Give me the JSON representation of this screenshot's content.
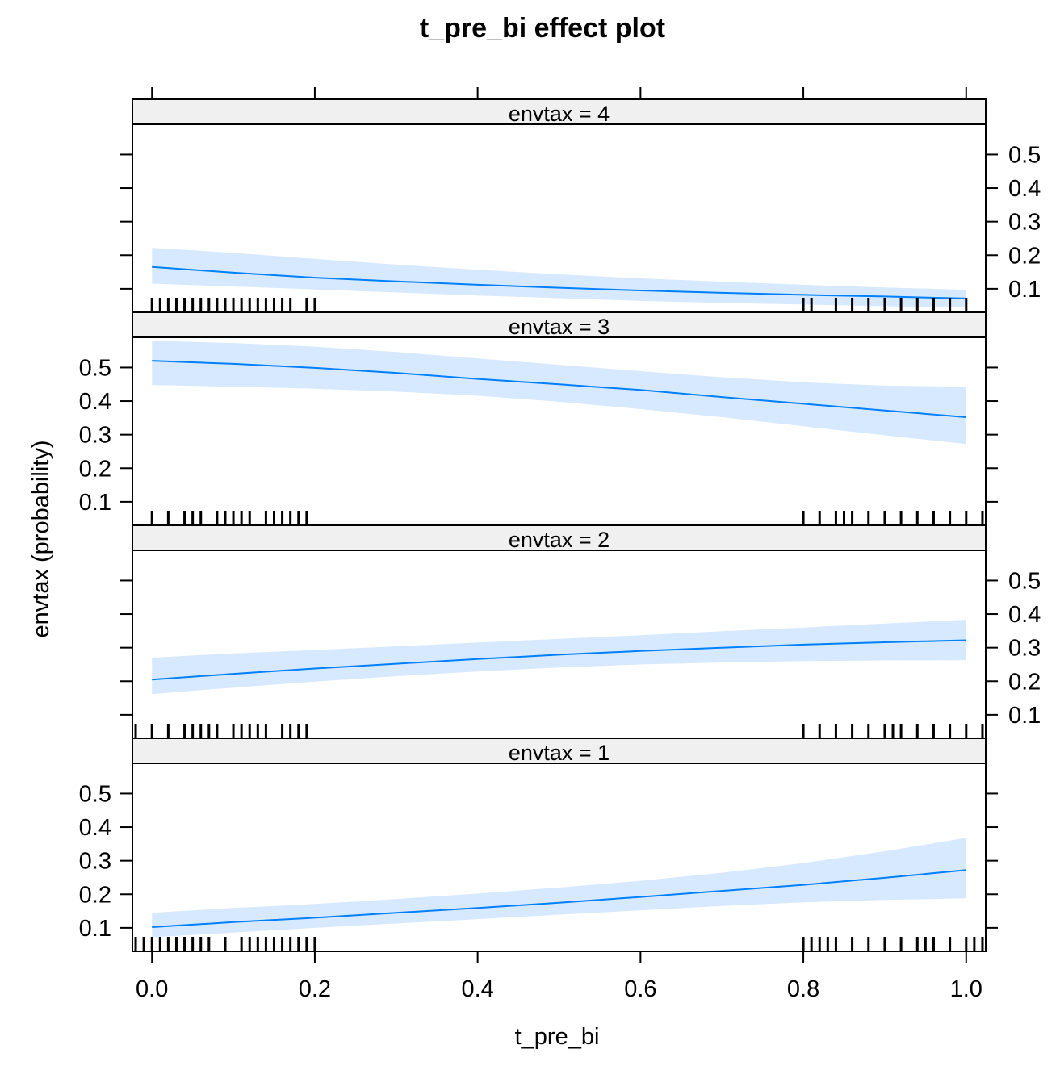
{
  "chart_data": {
    "type": "line",
    "title": "t_pre_bi effect plot",
    "xlabel": "t_pre_bi",
    "ylabel": "envtax (probability)",
    "xlim": [
      -0.024,
      1.024
    ],
    "ylim": [
      0.03,
      0.59
    ],
    "x_ticks": [
      0.0,
      0.2,
      0.4,
      0.6,
      0.8,
      1.0
    ],
    "x_tick_labels": [
      "0.0",
      "0.2",
      "0.4",
      "0.6",
      "0.8",
      "1.0"
    ],
    "y_ticks": [
      0.1,
      0.2,
      0.3,
      0.4,
      0.5
    ],
    "y_tick_labels": [
      "0.1",
      "0.2",
      "0.3",
      "0.4",
      "0.5"
    ],
    "colors": {
      "line": "#0080ff",
      "band": "#d6e9ff",
      "strip": "#f0f0f0",
      "rug": "#000000"
    },
    "panels": [
      {
        "strip_label": "envtax = 4",
        "y_axis_side": "right",
        "x": [
          0.0,
          0.1,
          0.2,
          0.3,
          0.4,
          0.5,
          0.6,
          0.7,
          0.8,
          0.9,
          1.0
        ],
        "fit": [
          0.165,
          0.148,
          0.133,
          0.122,
          0.112,
          0.103,
          0.095,
          0.088,
          0.082,
          0.077,
          0.071
        ],
        "lower": [
          0.115,
          0.107,
          0.098,
          0.089,
          0.08,
          0.072,
          0.064,
          0.058,
          0.053,
          0.048,
          0.044
        ],
        "upper": [
          0.222,
          0.207,
          0.189,
          0.172,
          0.157,
          0.143,
          0.131,
          0.121,
          0.112,
          0.104,
          0.097
        ],
        "rug": [
          0.0,
          0.01,
          0.02,
          0.03,
          0.04,
          0.05,
          0.06,
          0.07,
          0.08,
          0.09,
          0.1,
          0.11,
          0.12,
          0.13,
          0.14,
          0.15,
          0.16,
          0.17,
          0.19,
          0.2,
          0.8,
          0.81,
          0.84,
          0.86,
          0.88,
          0.9,
          0.92,
          0.94,
          0.96,
          0.98,
          1.0
        ]
      },
      {
        "strip_label": "envtax = 3",
        "y_axis_side": "left",
        "x": [
          0.0,
          0.1,
          0.2,
          0.3,
          0.4,
          0.5,
          0.6,
          0.7,
          0.8,
          0.9,
          1.0
        ],
        "fit": [
          0.52,
          0.511,
          0.499,
          0.484,
          0.466,
          0.45,
          0.433,
          0.412,
          0.392,
          0.372,
          0.352
        ],
        "lower": [
          0.448,
          0.443,
          0.437,
          0.428,
          0.416,
          0.398,
          0.376,
          0.352,
          0.325,
          0.298,
          0.272
        ],
        "upper": [
          0.58,
          0.573,
          0.562,
          0.546,
          0.527,
          0.508,
          0.489,
          0.471,
          0.456,
          0.446,
          0.443
        ],
        "rug": [
          0.0,
          0.02,
          0.04,
          0.05,
          0.06,
          0.08,
          0.09,
          0.1,
          0.11,
          0.12,
          0.14,
          0.15,
          0.16,
          0.17,
          0.18,
          0.19,
          0.8,
          0.82,
          0.84,
          0.85,
          0.86,
          0.88,
          0.9,
          0.92,
          0.94,
          0.96,
          0.98,
          1.0,
          1.02
        ]
      },
      {
        "strip_label": "envtax = 2",
        "y_axis_side": "right",
        "x": [
          0.0,
          0.1,
          0.2,
          0.3,
          0.4,
          0.5,
          0.6,
          0.7,
          0.8,
          0.9,
          1.0
        ],
        "fit": [
          0.205,
          0.222,
          0.238,
          0.252,
          0.266,
          0.279,
          0.29,
          0.3,
          0.309,
          0.316,
          0.322
        ],
        "lower": [
          0.162,
          0.181,
          0.199,
          0.215,
          0.229,
          0.241,
          0.25,
          0.256,
          0.26,
          0.262,
          0.263
        ],
        "upper": [
          0.27,
          0.283,
          0.293,
          0.304,
          0.315,
          0.326,
          0.337,
          0.349,
          0.36,
          0.372,
          0.383
        ],
        "rug": [
          -0.02,
          0.0,
          0.02,
          0.04,
          0.05,
          0.06,
          0.07,
          0.08,
          0.1,
          0.11,
          0.12,
          0.13,
          0.14,
          0.16,
          0.17,
          0.18,
          0.19,
          0.8,
          0.82,
          0.84,
          0.86,
          0.88,
          0.9,
          0.91,
          0.92,
          0.94,
          0.96,
          0.98,
          1.0,
          1.02
        ]
      },
      {
        "strip_label": "envtax = 1",
        "y_axis_side": "left",
        "x": [
          0.0,
          0.1,
          0.2,
          0.3,
          0.4,
          0.5,
          0.6,
          0.7,
          0.8,
          0.9,
          1.0
        ],
        "fit": [
          0.102,
          0.117,
          0.13,
          0.145,
          0.159,
          0.175,
          0.192,
          0.21,
          0.228,
          0.249,
          0.272
        ],
        "lower": [
          0.072,
          0.086,
          0.1,
          0.113,
          0.126,
          0.139,
          0.152,
          0.165,
          0.176,
          0.183,
          0.188
        ],
        "upper": [
          0.145,
          0.159,
          0.171,
          0.186,
          0.202,
          0.22,
          0.24,
          0.264,
          0.293,
          0.328,
          0.368
        ],
        "rug": [
          -0.02,
          -0.01,
          0.0,
          0.01,
          0.02,
          0.03,
          0.04,
          0.05,
          0.06,
          0.07,
          0.09,
          0.11,
          0.12,
          0.13,
          0.14,
          0.15,
          0.16,
          0.17,
          0.18,
          0.19,
          0.2,
          0.8,
          0.81,
          0.82,
          0.83,
          0.84,
          0.86,
          0.88,
          0.9,
          0.92,
          0.94,
          0.95,
          0.96,
          0.98,
          1.0,
          1.01,
          1.02
        ]
      }
    ]
  }
}
